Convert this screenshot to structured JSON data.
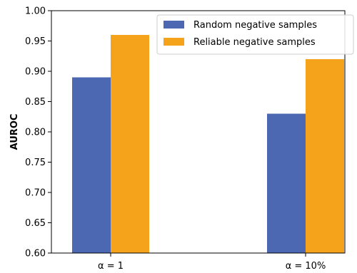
{
  "chart_data": {
    "type": "bar",
    "categories": [
      "α = 1",
      "α = 10%"
    ],
    "series": [
      {
        "name": "Random negative samples",
        "values": [
          0.89,
          0.83
        ],
        "color": "#4C68B3"
      },
      {
        "name": "Reliable negative samples",
        "values": [
          0.96,
          0.92
        ],
        "color": "#F5A31A"
      }
    ],
    "xlabel": "",
    "ylabel": "AUROC",
    "ylim": [
      0.6,
      1.0
    ],
    "yticks": [
      "0.60",
      "0.65",
      "0.70",
      "0.75",
      "0.80",
      "0.85",
      "0.90",
      "0.95",
      "1.00"
    ],
    "grid": false,
    "legend_position": "top-right"
  }
}
